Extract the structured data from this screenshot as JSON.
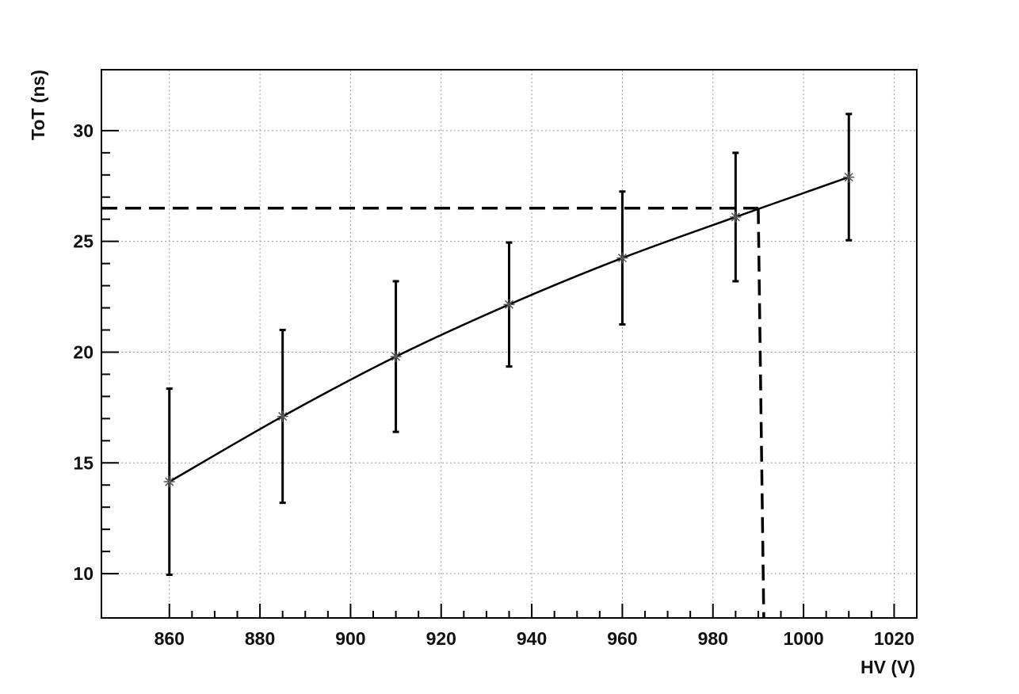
{
  "chart_data": {
    "type": "errorbar",
    "x_label": "HV (V)",
    "y_label": "ToT (ns)",
    "x": [
      860,
      885,
      910,
      935,
      960,
      985,
      1010
    ],
    "series": [
      {
        "color": "#000000",
        "values": [
          14.15,
          17.1,
          19.8,
          22.15,
          24.25,
          26.1,
          27.9
        ],
        "errors": [
          4.2,
          3.9,
          3.4,
          2.8,
          3.0,
          2.9,
          2.85
        ]
      }
    ],
    "reference": {
      "x": 990,
      "y": 26.5
    },
    "xlim": [
      845,
      1025
    ],
    "ylim": [
      8,
      32.75
    ],
    "xticks": [
      860,
      880,
      900,
      920,
      940,
      960,
      980,
      1000,
      1020
    ],
    "yticks": [
      10,
      15,
      20,
      25,
      30
    ],
    "grid": true
  }
}
